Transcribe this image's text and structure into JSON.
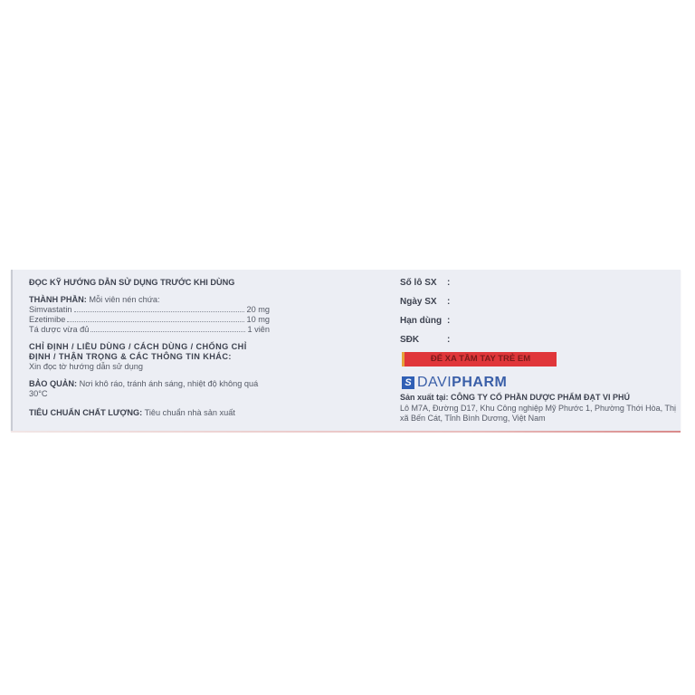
{
  "left": {
    "heading": "ĐỌC KỸ HƯỚNG DẪN SỬ DỤNG TRƯỚC KHI DÙNG",
    "composition_label": "THÀNH PHẦN:",
    "composition_text": "Mỗi viên nén chứa:",
    "ingredients": [
      {
        "name": "Simvastatin",
        "amount": "20 mg"
      },
      {
        "name": "Ezetimibe",
        "amount": "10 mg"
      },
      {
        "name": "Tá dược vừa đủ",
        "amount": "1 viên"
      }
    ],
    "indications_label": "CHỈ ĐỊNH / LIỀU DÙNG / CÁCH DÙNG / CHỐNG CHỈ ĐỊNH / THẬN TRỌNG & CÁC THÔNG TIN KHÁC:",
    "indications_text": "Xin đọc tờ hướng dẫn sử dụng",
    "storage_label": "BẢO QUẢN:",
    "storage_text": "Nơi khô ráo, tránh ánh sáng, nhiệt độ không quá 30°C",
    "quality_label": "TIÊU CHUẨN CHẤT LƯỢNG:",
    "quality_text": "Tiêu chuẩn nhà sản xuất"
  },
  "right": {
    "fields": [
      {
        "label": "Số lô SX",
        "colon": ":"
      },
      {
        "label": "Ngày SX",
        "colon": ":"
      },
      {
        "label": "Hạn dùng",
        "colon": ":"
      },
      {
        "label": "SĐK",
        "colon": ":"
      }
    ],
    "warning": "ĐỂ XA TẦM TAY TRẺ EM",
    "logo_text_light": "DAVI",
    "logo_text_bold": "PHARM",
    "manufacturer_label": "Sản xuất tại:",
    "manufacturer_name": "CÔNG TY CỔ PHẦN DƯỢC PHẨM ĐẠT VI PHÚ",
    "address": "Lô M7A, Đường D17, Khu Công nghiệp Mỹ Phước 1, Phường Thới Hòa, Thị xã Bến Cát, Tỉnh Bình Dương, Việt Nam"
  },
  "colors": {
    "panel": "#eceef4",
    "warning_bg": "#e0363a",
    "brand_blue": "#2f5fb5"
  }
}
